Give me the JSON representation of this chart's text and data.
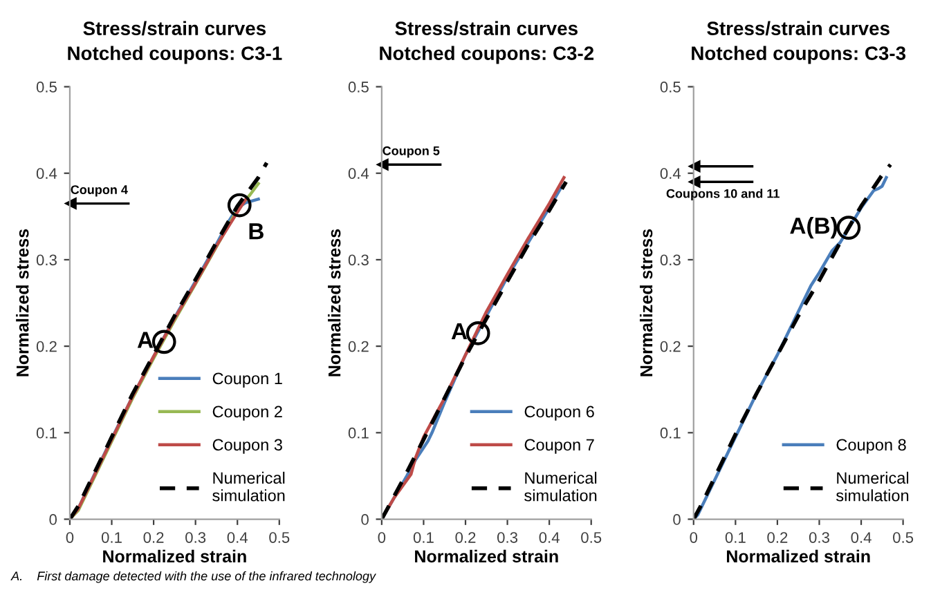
{
  "chart_data": [
    {
      "type": "line",
      "title": "Stress/strain curves\nNotched coupons: C3-1",
      "xlabel": "Normalized strain",
      "ylabel": "Normalized stress",
      "xlim": [
        0,
        0.5
      ],
      "ylim": [
        0,
        0.5
      ],
      "xticks": [
        0,
        0.1,
        0.2,
        0.3,
        0.4,
        0.5
      ],
      "yticks": [
        0,
        0.1,
        0.2,
        0.3,
        0.4,
        0.5
      ],
      "grid": false,
      "legend": "bottom right",
      "series": [
        {
          "name": "Coupon 1",
          "color": "#4a7ebb",
          "x": [
            0,
            0.02,
            0.05,
            0.1,
            0.15,
            0.2,
            0.25,
            0.3,
            0.35,
            0.38,
            0.4,
            0.42,
            0.45
          ],
          "values": [
            0,
            0.012,
            0.043,
            0.093,
            0.142,
            0.188,
            0.233,
            0.275,
            0.318,
            0.345,
            0.36,
            0.366,
            0.37
          ]
        },
        {
          "name": "Coupon 2",
          "color": "#98b954",
          "x": [
            0,
            0.02,
            0.05,
            0.1,
            0.15,
            0.2,
            0.25,
            0.3,
            0.35,
            0.4,
            0.43,
            0.45
          ],
          "values": [
            0,
            0.01,
            0.04,
            0.09,
            0.14,
            0.186,
            0.23,
            0.272,
            0.315,
            0.358,
            0.375,
            0.388
          ]
        },
        {
          "name": "Coupon 3",
          "color": "#be4b48",
          "x": [
            0,
            0.02,
            0.05,
            0.1,
            0.15,
            0.2,
            0.25,
            0.3,
            0.35,
            0.4,
            0.42
          ],
          "values": [
            0,
            0.012,
            0.042,
            0.092,
            0.142,
            0.188,
            0.232,
            0.273,
            0.316,
            0.355,
            0.37
          ]
        },
        {
          "name": "Numerical\nsimulation",
          "color": "#000000",
          "line_style": "dashed",
          "x": [
            0,
            0.02,
            0.05,
            0.1,
            0.15,
            0.2,
            0.25,
            0.3,
            0.35,
            0.4,
            0.45,
            0.47
          ],
          "values": [
            0,
            0.015,
            0.045,
            0.095,
            0.145,
            0.19,
            0.235,
            0.277,
            0.32,
            0.362,
            0.395,
            0.412
          ]
        }
      ],
      "ref_lines": [
        {
          "axis": "y",
          "value": 0.365,
          "label": "Coupon 4"
        }
      ],
      "annotations": [
        {
          "text": "A",
          "x": 0.225,
          "y": 0.205
        },
        {
          "text": "B",
          "x": 0.405,
          "y": 0.363
        },
        "A.    First damage detected with the use of the infrared technology"
      ]
    },
    {
      "type": "line",
      "title": "Stress/strain curves\nNotched coupons: C3-2",
      "xlabel": "Normalized strain",
      "ylabel": "Normalized stress",
      "xlim": [
        0,
        0.5
      ],
      "ylim": [
        0,
        0.5
      ],
      "xticks": [
        0,
        0.1,
        0.2,
        0.3,
        0.4,
        0.5
      ],
      "yticks": [
        0,
        0.1,
        0.2,
        0.3,
        0.4,
        0.5
      ],
      "grid": false,
      "legend": "bottom right",
      "series": [
        {
          "name": "Coupon 6",
          "color": "#4a7ebb",
          "x": [
            0,
            0.03,
            0.06,
            0.08,
            0.11,
            0.12,
            0.15,
            0.2,
            0.25,
            0.3,
            0.35,
            0.4,
            0.43
          ],
          "values": [
            0,
            0.025,
            0.05,
            0.068,
            0.09,
            0.1,
            0.135,
            0.19,
            0.235,
            0.28,
            0.32,
            0.36,
            0.385
          ]
        },
        {
          "name": "Coupon 7",
          "color": "#be4b48",
          "x": [
            0,
            0.03,
            0.07,
            0.08,
            0.1,
            0.15,
            0.2,
            0.25,
            0.3,
            0.35,
            0.4,
            0.435
          ],
          "values": [
            0,
            0.025,
            0.052,
            0.07,
            0.095,
            0.14,
            0.19,
            0.24,
            0.283,
            0.325,
            0.365,
            0.395
          ]
        },
        {
          "name": "Numerical\nsimulation",
          "color": "#000000",
          "line_style": "dashed",
          "x": [
            0,
            0.05,
            0.1,
            0.15,
            0.2,
            0.25,
            0.3,
            0.35,
            0.4,
            0.44
          ],
          "values": [
            0,
            0.045,
            0.092,
            0.14,
            0.188,
            0.232,
            0.275,
            0.318,
            0.357,
            0.39
          ]
        }
      ],
      "ref_lines": [
        {
          "axis": "y",
          "value": 0.41,
          "label": "Coupon 5"
        }
      ],
      "annotations": [
        {
          "text": "A",
          "x": 0.23,
          "y": 0.215
        }
      ]
    },
    {
      "type": "line",
      "title": "Stress/strain curves\nNotched coupons: C3-3",
      "xlabel": "Normalized strain",
      "ylabel": "Normalized stress",
      "xlim": [
        0,
        0.5
      ],
      "ylim": [
        0,
        0.5
      ],
      "xticks": [
        0,
        0.1,
        0.2,
        0.3,
        0.4,
        0.5
      ],
      "yticks": [
        0,
        0.1,
        0.2,
        0.3,
        0.4,
        0.5
      ],
      "grid": false,
      "legend": "bottom right",
      "series": [
        {
          "name": "Coupon 8",
          "color": "#4a7ebb",
          "x": [
            0,
            0.01,
            0.03,
            0.05,
            0.1,
            0.15,
            0.2,
            0.25,
            0.28,
            0.3,
            0.33,
            0.35,
            0.4,
            0.43,
            0.44,
            0.45,
            0.46
          ],
          "values": [
            0,
            0.005,
            0.025,
            0.045,
            0.095,
            0.145,
            0.19,
            0.24,
            0.27,
            0.285,
            0.31,
            0.32,
            0.36,
            0.38,
            0.382,
            0.385,
            0.395
          ]
        },
        {
          "name": "Numerical\nsimulation",
          "color": "#000000",
          "line_style": "dashed",
          "x": [
            0,
            0.02,
            0.05,
            0.1,
            0.15,
            0.2,
            0.25,
            0.3,
            0.35,
            0.4,
            0.45,
            0.47
          ],
          "values": [
            0,
            0.018,
            0.048,
            0.098,
            0.145,
            0.19,
            0.235,
            0.276,
            0.32,
            0.362,
            0.398,
            0.41
          ]
        }
      ],
      "ref_lines": [
        {
          "axis": "y",
          "value": 0.408
        },
        {
          "axis": "y",
          "value": 0.39,
          "label": "Coupons 10 and 11"
        }
      ],
      "annotations": [
        {
          "text": "A(B)",
          "x": 0.37,
          "y": 0.337
        }
      ]
    }
  ]
}
